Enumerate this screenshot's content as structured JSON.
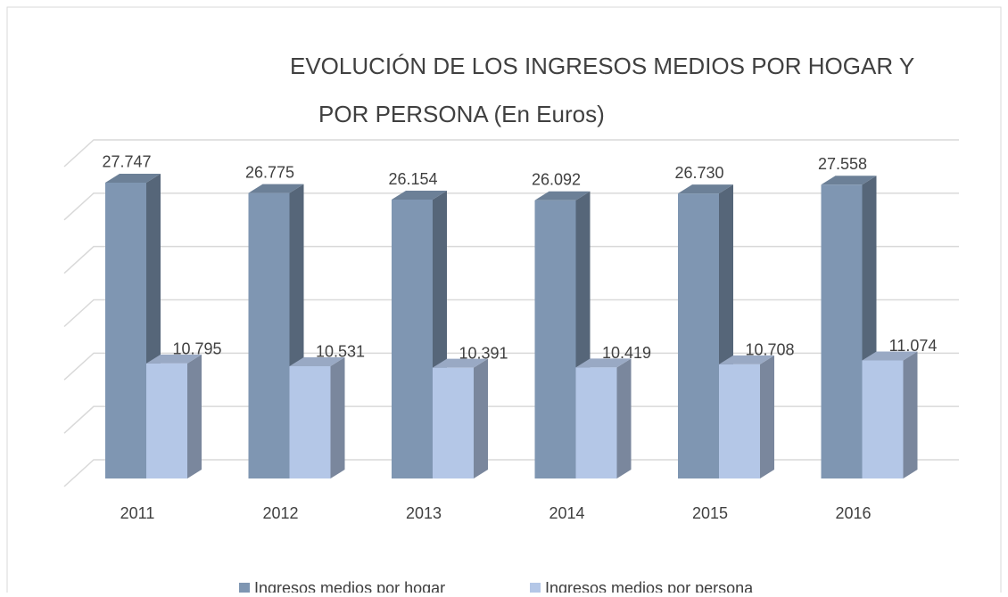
{
  "chart_data": {
    "type": "bar3d",
    "title": [
      "EVOLUCIÓN DE LOS INGRESOS MEDIOS POR HOGAR Y",
      "POR PERSONA (En Euros)"
    ],
    "categories": [
      "2011",
      "2012",
      "2013",
      "2014",
      "2015",
      "2016"
    ],
    "series": [
      {
        "name": "Ingresos medios por hogar",
        "color": "#7f96b2",
        "values": [
          27747,
          26775,
          26154,
          26092,
          26730,
          27558
        ],
        "value_labels": [
          "27.747",
          "26.775",
          "26.154",
          "26.092",
          "26.730",
          "27.558"
        ]
      },
      {
        "name": "Ingresos medios por persona",
        "color": "#b4c7e7",
        "values": [
          10795,
          10531,
          10391,
          10419,
          10708,
          11074
        ],
        "value_labels": [
          "10.795",
          "10.531",
          "10.391",
          "10.419",
          "10.708",
          "11.074"
        ]
      }
    ],
    "ylim": [
      0,
      30000
    ],
    "yticks": [
      0,
      5000,
      10000,
      15000,
      20000,
      25000,
      30000
    ],
    "grid": true,
    "legend": "bottom"
  }
}
